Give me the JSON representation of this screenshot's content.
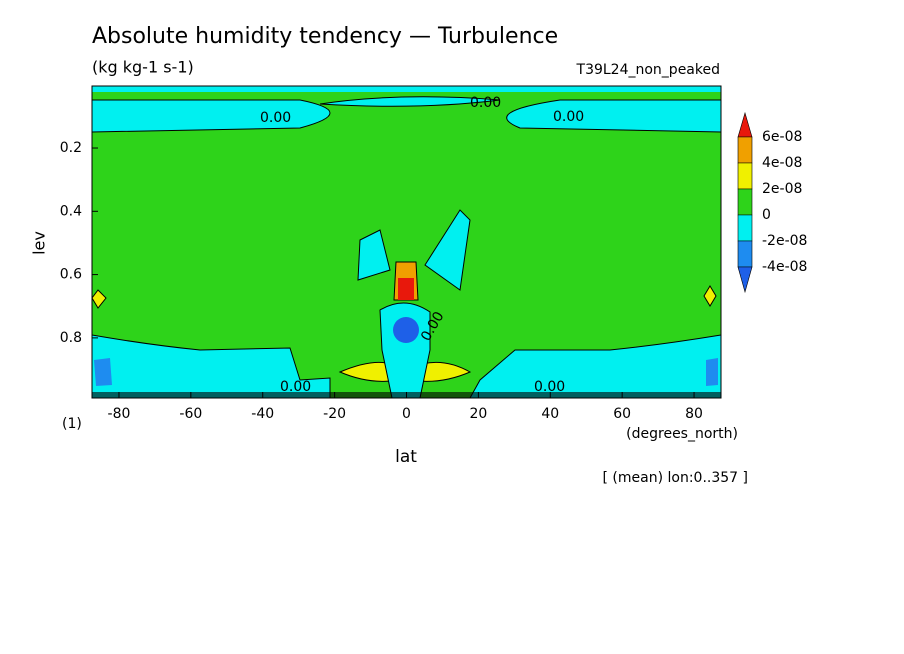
{
  "chart_data": {
    "type": "contour",
    "title": "Absolute humidity tendency — Turbulence",
    "subtitle": "(kg kg-1 s-1)",
    "run_label": "T39L24_non_peaked",
    "xlabel": "lat",
    "x_unit": "(degrees_north)",
    "ylabel": "lev",
    "y_unit": "(1)",
    "note": "[ (mean) lon:0..357 ]",
    "xlim": [
      -87.5,
      87.5
    ],
    "xticks": [
      -80,
      -60,
      -40,
      -20,
      0,
      20,
      40,
      60,
      80
    ],
    "ylim": [
      0.004,
      0.99
    ],
    "yticks": [
      0.2,
      0.4,
      0.6,
      0.8
    ],
    "y_inverted": true,
    "colorbar": {
      "levels": [
        {
          "value": 6e-08,
          "label": "6e-08"
        },
        {
          "value": 4e-08,
          "label": "4e-08"
        },
        {
          "value": 2e-08,
          "label": "2e-08"
        },
        0,
        {
          "value": -2e-08,
          "label": "-2e-08"
        },
        {
          "value": -4e-08,
          "label": "-4e-08"
        }
      ],
      "colors": [
        "#e8180c",
        "#f0a000",
        "#f0f000",
        "#2ed31a",
        "#00f0f0",
        "#1e8cf0",
        "#1e60e8"
      ]
    },
    "contour_labels": [
      "0.00",
      "0.00",
      "0.00",
      "0.00",
      "0.00",
      "0.00"
    ]
  }
}
